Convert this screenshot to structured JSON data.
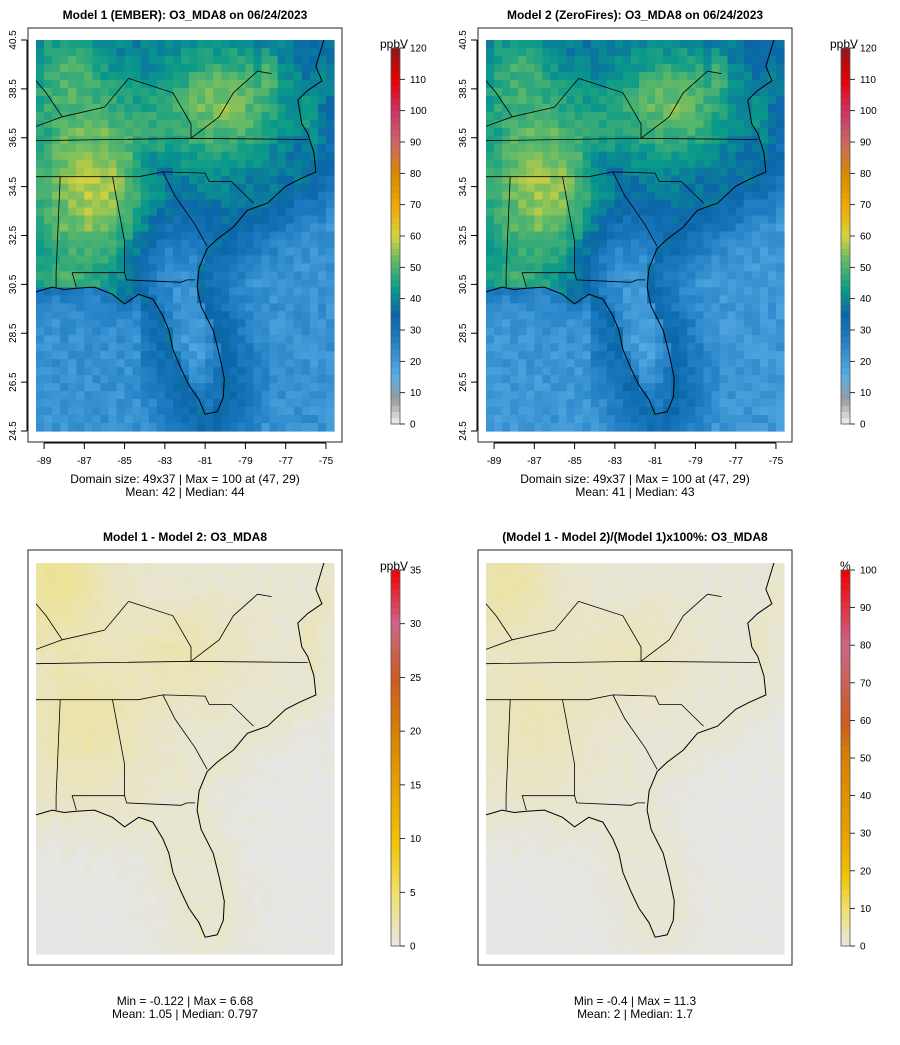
{
  "chart_data": [
    {
      "type": "heatmap",
      "title": "Model 1 (EMBER): O3_MDA8 on 06/24/2023",
      "x_ticks": [
        "-89",
        "-87",
        "-85",
        "-83",
        "-81",
        "-79",
        "-77",
        "-75"
      ],
      "y_ticks": [
        "24.5",
        "26.5",
        "28.5",
        "30.5",
        "32.5",
        "34.5",
        "36.5",
        "38.5",
        "40.5"
      ],
      "colorbar": {
        "unit": "ppbV",
        "min": 0,
        "max": 120,
        "ticks": [
          "0",
          "10",
          "20",
          "30",
          "40",
          "50",
          "60",
          "70",
          "80",
          "90",
          "100",
          "110",
          "120"
        ]
      },
      "stats": {
        "line1": "Domain size: 49x37 | Max = 100 at (47, 29)",
        "line2": "Mean: 42 |  Median: 44"
      },
      "field": "o3"
    },
    {
      "type": "heatmap",
      "title": "Model 2 (ZeroFires): O3_MDA8 on 06/24/2023",
      "x_ticks": [
        "-89",
        "-87",
        "-85",
        "-83",
        "-81",
        "-79",
        "-77",
        "-75"
      ],
      "y_ticks": [
        "24.5",
        "26.5",
        "28.5",
        "30.5",
        "32.5",
        "34.5",
        "36.5",
        "38.5",
        "40.5"
      ],
      "colorbar": {
        "unit": "ppbV",
        "min": 0,
        "max": 120,
        "ticks": [
          "0",
          "10",
          "20",
          "30",
          "40",
          "50",
          "60",
          "70",
          "80",
          "90",
          "100",
          "110",
          "120"
        ]
      },
      "stats": {
        "line1": "Domain size: 49x37 | Max = 100 at (47, 29)",
        "line2": "Mean: 41 |  Median: 43"
      },
      "field": "o3"
    },
    {
      "type": "heatmap",
      "title": "Model 1 - Model 2: O3_MDA8",
      "x_ticks": [],
      "y_ticks": [],
      "colorbar": {
        "unit": "ppbV",
        "min": 0,
        "max": 35,
        "ticks": [
          "0",
          "5",
          "10",
          "15",
          "20",
          "25",
          "30",
          "35"
        ]
      },
      "stats": {
        "line1": "Min = -0.122 | Max = 6.68",
        "line2": "Mean: 1.05 |  Median: 0.797"
      },
      "field": "diff"
    },
    {
      "type": "heatmap",
      "title": "(Model 1 - Model 2)/(Model 1)x100%: O3_MDA8",
      "x_ticks": [],
      "y_ticks": [],
      "colorbar": {
        "unit": "%",
        "min": 0,
        "max": 100,
        "ticks": [
          "0",
          "10",
          "20",
          "30",
          "40",
          "50",
          "60",
          "70",
          "80",
          "90",
          "100"
        ]
      },
      "stats": {
        "line1": "Min = -0.4 | Max = 11.3",
        "line2": "Mean: 2 |  Median: 1.7"
      },
      "field": "pct"
    }
  ]
}
